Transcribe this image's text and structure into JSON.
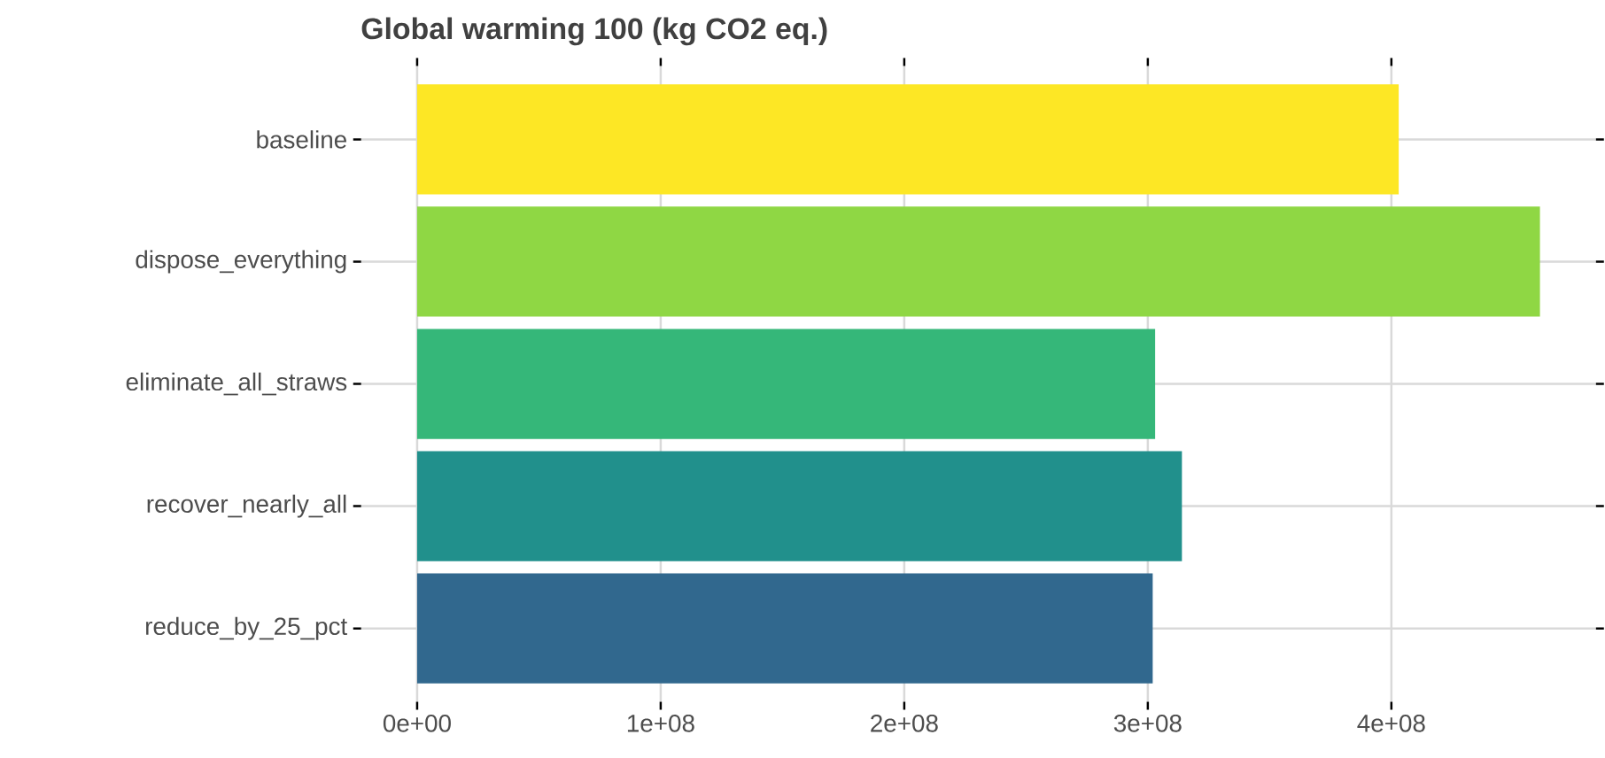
{
  "chart_data": {
    "type": "bar",
    "orientation": "horizontal",
    "title": "Global warming 100 (kg CO2 eq.)",
    "categories": [
      "baseline",
      "dispose_everything",
      "eliminate_all_straws",
      "recover_nearly_all",
      "reduce_by_25_pct"
    ],
    "values": [
      403000000,
      461000000,
      303000000,
      314000000,
      302000000
    ],
    "colors": [
      "#fde725",
      "#8fd744",
      "#35b779",
      "#21908c",
      "#31688e"
    ],
    "xlim": [
      -23000000,
      484000000
    ],
    "xticks": [
      {
        "value": 0,
        "label": "0e+00"
      },
      {
        "value": 100000000,
        "label": "1e+08"
      },
      {
        "value": 200000000,
        "label": "2e+08"
      },
      {
        "value": 300000000,
        "label": "3e+08"
      },
      {
        "value": 400000000,
        "label": "4e+08"
      }
    ],
    "grid": true
  }
}
